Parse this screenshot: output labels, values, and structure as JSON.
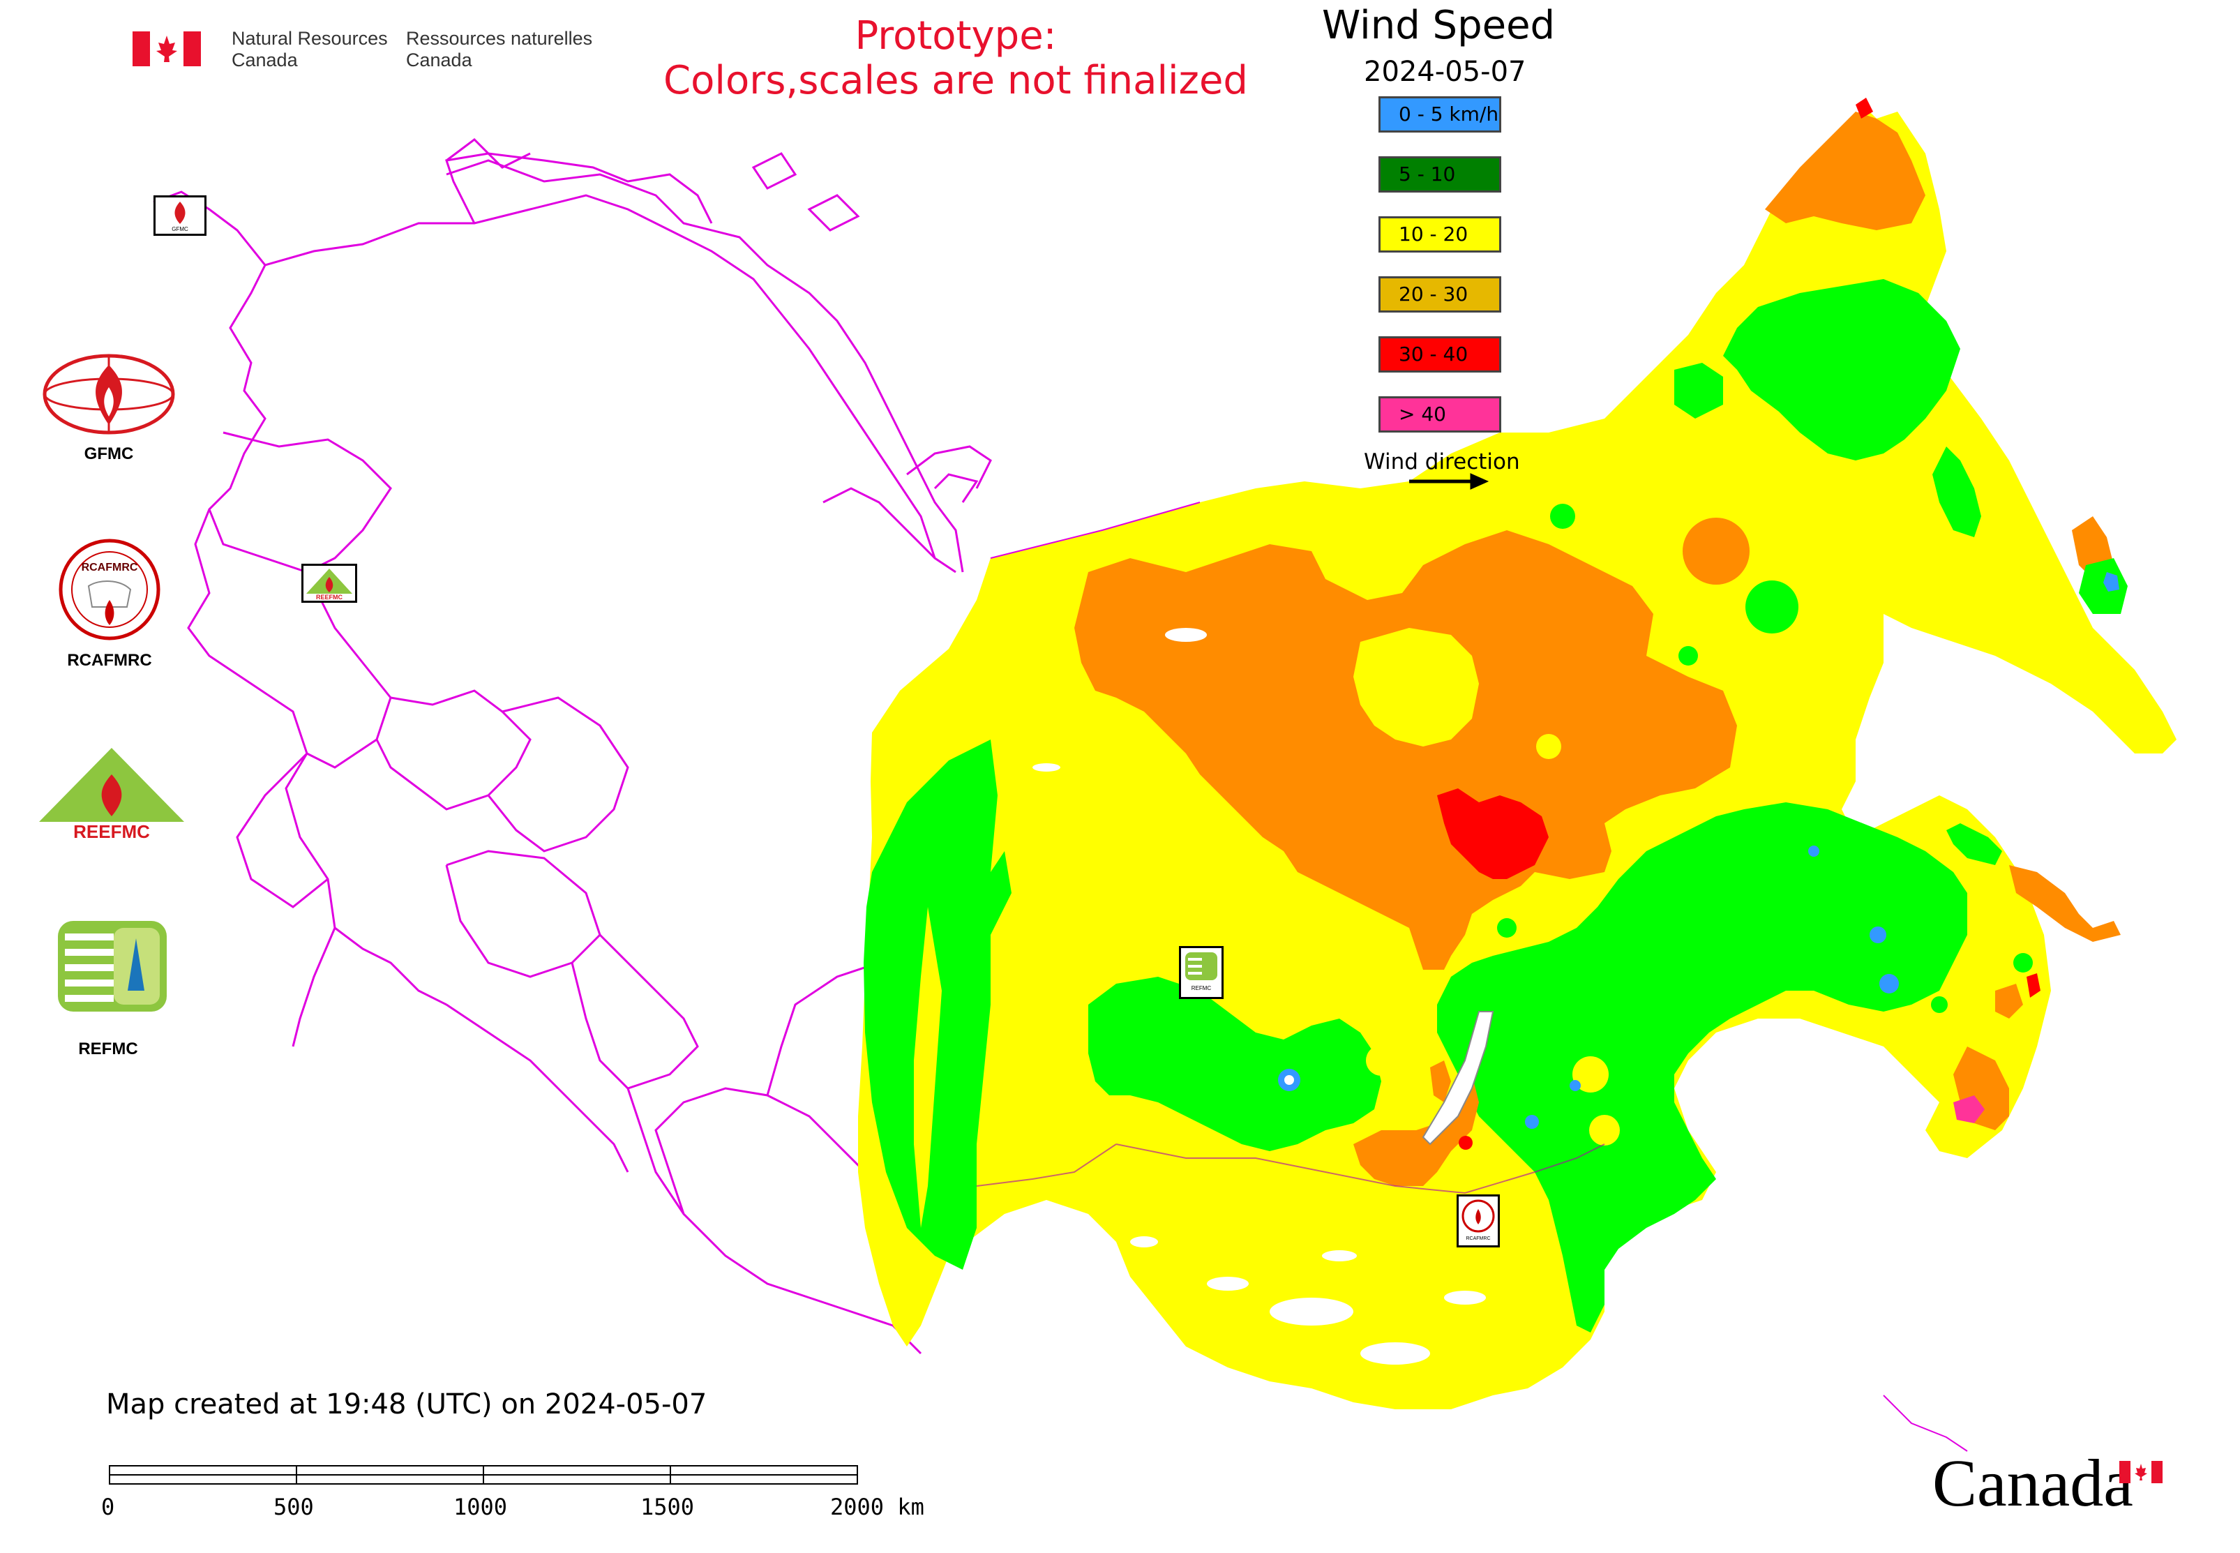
{
  "header": {
    "nrcan_en_line1": "Natural Resources",
    "nrcan_en_line2": "Canada",
    "nrcan_fr_line1": "Ressources naturelles",
    "nrcan_fr_line2": "Canada",
    "prototype_line1": "Prototype:",
    "prototype_line2": "Colors,scales are not finalized"
  },
  "legend": {
    "title": "Wind Speed",
    "date": "2024-05-07",
    "classes": [
      {
        "label": "0 - 5 km/h",
        "color": "#3399ff"
      },
      {
        "label": "5 - 10",
        "color": "#008000"
      },
      {
        "label": "10 - 20",
        "color": "#ffff00"
      },
      {
        "label": "20 - 30",
        "color": "#e6b800"
      },
      {
        "label": "30 - 40",
        "color": "#ff0000"
      },
      {
        "label": "> 40",
        "color": "#ff3399"
      }
    ],
    "wind_direction_label": "Wind direction"
  },
  "map_colors": {
    "calm": "#3399ff",
    "light": "#00ff00",
    "moderate": "#ffff00",
    "fresh": "#ff8c00",
    "strong": "#ff0000",
    "boundaries": "#e000e0"
  },
  "logos": [
    {
      "label": "GFMC"
    },
    {
      "label": "RCAFMRC"
    },
    {
      "label": "REEFMC"
    },
    {
      "label": "REFMC"
    }
  ],
  "map_badges": {
    "gfmc": "GFMC",
    "reefmc": "REEFMC",
    "refmc": "REFMC",
    "rcafmrc": "RCAFMRC"
  },
  "footer": {
    "created_text": "Map created at 19:48 (UTC) on 2024-05-07",
    "scale_labels": [
      "0",
      "500",
      "1000",
      "1500",
      "2000 km"
    ],
    "wordmark": "Canada"
  }
}
